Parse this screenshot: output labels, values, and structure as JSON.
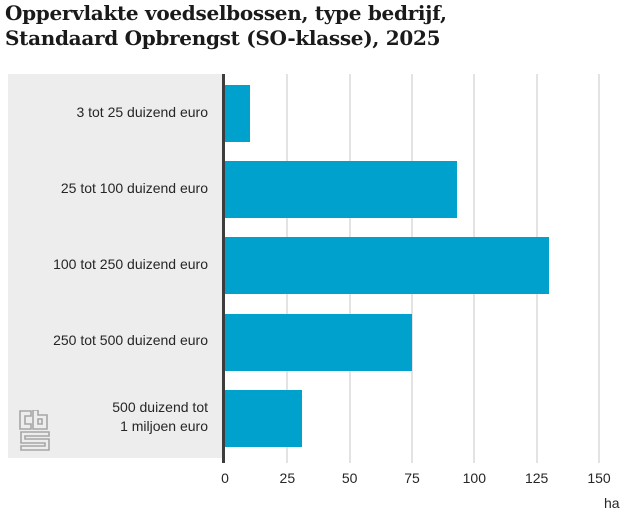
{
  "chart_data": {
    "type": "bar",
    "orientation": "horizontal",
    "title": "Oppervlakte voedselbossen, type bedrijf,\nStandaard Opbrengst (SO-klasse), 2025",
    "categories": [
      "3 tot 25 duizend euro",
      "25 tot 100 duizend euro",
      "100 tot 250 duizend euro",
      "250 tot 500 duizend euro",
      "500 duizend tot\n1 miljoen euro"
    ],
    "values": [
      10,
      93,
      130,
      75,
      31
    ],
    "xticks": [
      0,
      25,
      50,
      75,
      100,
      125,
      150
    ],
    "xlim": [
      0,
      158
    ],
    "xlabel": "",
    "ylabel": "",
    "unit": "ha",
    "grid": true,
    "legend": false,
    "bar_color": "#00a1cd",
    "panel_color": "#ededed",
    "axis_color": "#3d3d3d",
    "source_logo": "cbs"
  }
}
